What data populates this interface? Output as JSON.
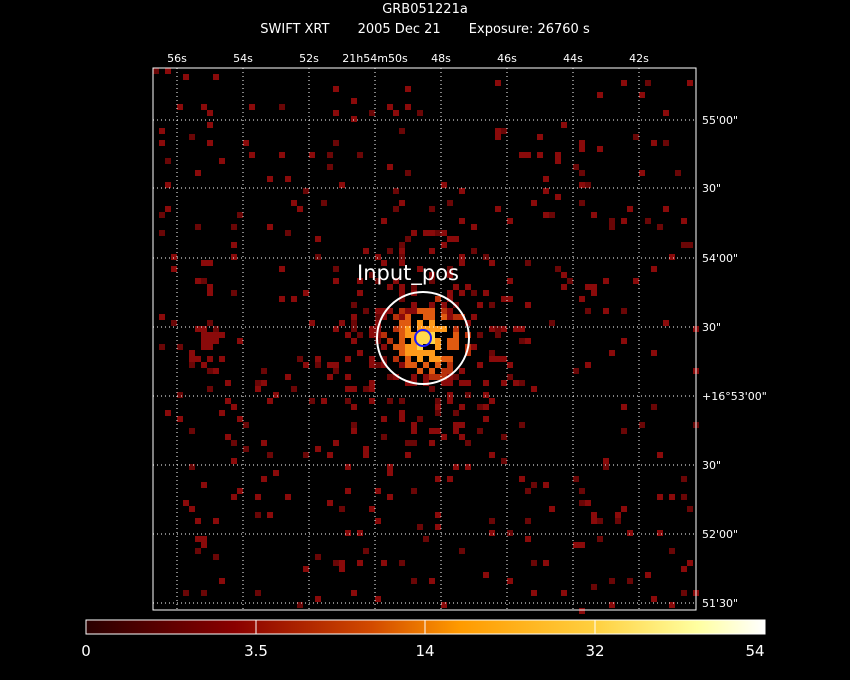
{
  "header": {
    "object": "GRB051221a",
    "instrument": "SWIFT XRT",
    "date": "2005 Dec 21",
    "exposure": "Exposure: 26760 s"
  },
  "image": {
    "colormap": "heat (black-dark red-orange-yellow-white)",
    "background": "#000000",
    "grid": "dotted white",
    "region_label": "Input_pos",
    "outer_circle_color": "#ffffff",
    "inner_circle_color": "#0000ff"
  },
  "axes": {
    "ra_ticks": [
      "56s",
      "54s",
      "52s",
      "21h54m50s",
      "48s",
      "46s",
      "44s",
      "42s"
    ],
    "dec_ticks": [
      "55'00\"",
      "30\"",
      "54'00\"",
      "30\"",
      "+16°53'00\"",
      "30\"",
      "52'00\"",
      "51'30\""
    ]
  },
  "colorbar": {
    "labels": [
      "0",
      "3.5",
      "14",
      "32",
      "54"
    ]
  }
}
